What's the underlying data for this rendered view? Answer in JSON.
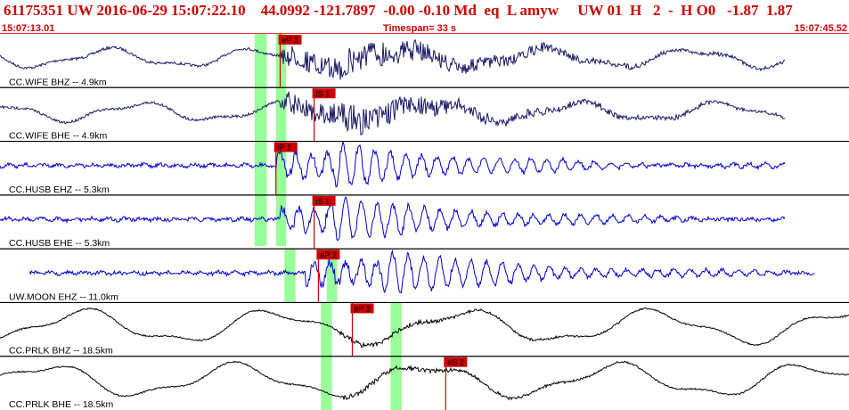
{
  "header": {
    "title": "61175351 UW 2016-06-29 15:07:22.10    44.0992 -121.7897  -0.00 -0.10 Md  eq  L amyw     UW 01  H   2  -  H O0   -1.87  1.87",
    "start_time": "15:07:13.01",
    "timespan": "Timespan=  33 s",
    "end_time": "15:07:45.52"
  },
  "colors": {
    "header_text": "#cc0000",
    "trace_dark": "#1a1a66",
    "trace_blue": "#0000cc",
    "trace_black": "#000000",
    "pick": "#cc0000",
    "highlight": "#99ff99"
  },
  "traces": [
    {
      "label": "CC.WIFE BHZ -- 4.9km",
      "style": "mixed",
      "color": "trace_dark",
      "start": 0.0,
      "end": 0.925,
      "p": 0.33,
      "s": 0.4,
      "picks": [
        {
          "text": "eP 3",
          "t": 0.33
        }
      ]
    },
    {
      "label": "CC.WIFE BHE -- 4.9km",
      "style": "mixed",
      "color": "trace_dark",
      "start": 0.0,
      "end": 0.925,
      "p": 0.33,
      "s": 0.4,
      "picks": [
        {
          "text": "iS 1",
          "t": 0.37
        }
      ]
    },
    {
      "label": "CC.HUSB EHZ -- 5.3km",
      "style": "hf",
      "color": "trace_blue",
      "start": 0.0,
      "end": 0.925,
      "p": 0.325,
      "s": 0.395,
      "picks": [
        {
          "text": "iP 1",
          "t": 0.325
        }
      ]
    },
    {
      "label": "CC.HUSB EHE -- 5.3km",
      "style": "hf",
      "color": "trace_blue",
      "start": 0.0,
      "end": 0.925,
      "p": 0.33,
      "s": 0.39,
      "picks": [
        {
          "text": "iS 1",
          "t": 0.37
        }
      ]
    },
    {
      "label": "UW.MOON EHZ -- 11.0km",
      "style": "hf",
      "color": "trace_blue",
      "start": 0.035,
      "end": 0.96,
      "p": 0.36,
      "s": 0.45,
      "picks": [
        {
          "text": "eP 2",
          "t": 0.375
        }
      ]
    },
    {
      "label": "CC.PRLK BHZ -- 18.5km",
      "style": "lf",
      "color": "trace_black",
      "start": 0.0,
      "end": 1.0,
      "p": 0.4,
      "s": 0.46,
      "picks": [
        {
          "text": "eP 2",
          "t": 0.415
        }
      ]
    },
    {
      "label": "CC.PRLK BHE -- 18.5km",
      "style": "lf",
      "color": "trace_black",
      "start": 0.0,
      "end": 1.0,
      "p": 0.4,
      "s": 0.5,
      "picks": [
        {
          "text": "eS 2",
          "t": 0.525
        }
      ]
    }
  ],
  "highlights": [
    {
      "t": 0.3,
      "w": 0.014,
      "from": 0,
      "to": 3.95
    },
    {
      "t": 0.325,
      "w": 0.012,
      "from": 0,
      "to": 3.95
    },
    {
      "t": 0.335,
      "w": 0.013,
      "from": 4.0,
      "to": 5.0
    },
    {
      "t": 0.385,
      "w": 0.012,
      "from": 4.0,
      "to": 5.0
    },
    {
      "t": 0.378,
      "w": 0.013,
      "from": 5.0,
      "to": 7.0
    },
    {
      "t": 0.46,
      "w": 0.013,
      "from": 5.0,
      "to": 7.0
    }
  ]
}
